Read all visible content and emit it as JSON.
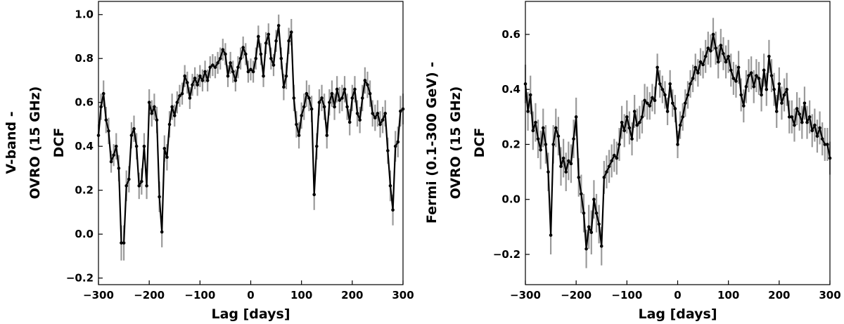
{
  "chart_data": [
    {
      "type": "line",
      "xlabel": "Lag [days]",
      "ylabel_lines": [
        "V-band -",
        "OVRO (15 GHz)",
        "DCF"
      ],
      "xlim": [
        -300,
        300
      ],
      "ylim": [
        -0.23,
        1.06
      ],
      "xticks": [
        -300,
        -200,
        -100,
        0,
        100,
        200,
        300
      ],
      "yticks": [
        -0.2,
        0.0,
        0.2,
        0.4,
        0.6,
        0.8,
        1.0
      ],
      "ytick_labels": [
        "−0.2",
        "0.0",
        "0.2",
        "0.4",
        "0.6",
        "0.8",
        "1.0"
      ],
      "xtick_labels": [
        "−300",
        "−200",
        "−100",
        "0",
        "100",
        "200",
        "300"
      ],
      "line_color": "#000000",
      "error_color": "#9a9a9a",
      "grid": false,
      "series": [
        {
          "x": [
            -300,
            -295,
            -290,
            -285,
            -280,
            -275,
            -270,
            -265,
            -260,
            -255,
            -250,
            -245,
            -240,
            -235,
            -230,
            -225,
            -220,
            -215,
            -210,
            -205,
            -200,
            -195,
            -190,
            -185,
            -180,
            -175,
            -170,
            -165,
            -160,
            -155,
            -150,
            -145,
            -140,
            -135,
            -130,
            -125,
            -120,
            -115,
            -110,
            -105,
            -100,
            -95,
            -90,
            -85,
            -80,
            -75,
            -70,
            -65,
            -60,
            -55,
            -50,
            -45,
            -40,
            -35,
            -30,
            -25,
            -20,
            -15,
            -10,
            -5,
            0,
            5,
            10,
            15,
            20,
            25,
            30,
            35,
            40,
            45,
            50,
            55,
            60,
            65,
            70,
            75,
            80,
            85,
            90,
            95,
            100,
            105,
            110,
            115,
            120,
            125,
            130,
            135,
            140,
            145,
            150,
            155,
            160,
            165,
            170,
            175,
            180,
            185,
            190,
            195,
            200,
            205,
            210,
            215,
            220,
            225,
            230,
            235,
            240,
            245,
            250,
            255,
            260,
            265,
            270,
            275,
            280,
            285,
            290,
            295,
            300
          ],
          "y": [
            0.45,
            0.58,
            0.64,
            0.52,
            0.47,
            0.33,
            0.36,
            0.4,
            0.3,
            -0.04,
            -0.04,
            0.22,
            0.25,
            0.45,
            0.48,
            0.4,
            0.22,
            0.24,
            0.4,
            0.22,
            0.6,
            0.55,
            0.58,
            0.52,
            0.17,
            0.01,
            0.39,
            0.35,
            0.5,
            0.58,
            0.54,
            0.6,
            0.63,
            0.64,
            0.72,
            0.69,
            0.62,
            0.68,
            0.71,
            0.68,
            0.72,
            0.7,
            0.74,
            0.7,
            0.76,
            0.77,
            0.76,
            0.78,
            0.8,
            0.84,
            0.82,
            0.72,
            0.78,
            0.74,
            0.7,
            0.76,
            0.8,
            0.85,
            0.82,
            0.74,
            0.75,
            0.74,
            0.8,
            0.9,
            0.82,
            0.72,
            0.87,
            0.91,
            0.8,
            0.77,
            0.88,
            0.95,
            0.8,
            0.67,
            0.72,
            0.88,
            0.92,
            0.62,
            0.5,
            0.45,
            0.54,
            0.58,
            0.64,
            0.62,
            0.57,
            0.18,
            0.4,
            0.6,
            0.62,
            0.58,
            0.45,
            0.6,
            0.64,
            0.58,
            0.66,
            0.61,
            0.62,
            0.66,
            0.58,
            0.51,
            0.62,
            0.66,
            0.55,
            0.52,
            0.62,
            0.7,
            0.68,
            0.64,
            0.55,
            0.53,
            0.55,
            0.5,
            0.52,
            0.55,
            0.38,
            0.22,
            0.11,
            0.4,
            0.42,
            0.56,
            0.57
          ],
          "err": [
            0.05,
            0.06,
            0.06,
            0.06,
            0.06,
            0.05,
            0.05,
            0.06,
            0.06,
            0.08,
            0.08,
            0.07,
            0.06,
            0.06,
            0.06,
            0.06,
            0.06,
            0.06,
            0.06,
            0.06,
            0.06,
            0.06,
            0.06,
            0.06,
            0.07,
            0.07,
            0.06,
            0.06,
            0.06,
            0.06,
            0.05,
            0.05,
            0.05,
            0.05,
            0.05,
            0.05,
            0.05,
            0.05,
            0.05,
            0.05,
            0.05,
            0.05,
            0.05,
            0.05,
            0.05,
            0.05,
            0.05,
            0.05,
            0.05,
            0.05,
            0.05,
            0.05,
            0.05,
            0.05,
            0.05,
            0.05,
            0.05,
            0.05,
            0.05,
            0.05,
            0.05,
            0.05,
            0.05,
            0.05,
            0.05,
            0.05,
            0.05,
            0.05,
            0.05,
            0.05,
            0.05,
            0.05,
            0.05,
            0.06,
            0.06,
            0.06,
            0.06,
            0.06,
            0.06,
            0.06,
            0.06,
            0.06,
            0.06,
            0.06,
            0.06,
            0.07,
            0.06,
            0.06,
            0.06,
            0.06,
            0.06,
            0.06,
            0.06,
            0.06,
            0.06,
            0.06,
            0.06,
            0.06,
            0.06,
            0.06,
            0.06,
            0.06,
            0.06,
            0.06,
            0.06,
            0.06,
            0.06,
            0.06,
            0.06,
            0.06,
            0.06,
            0.06,
            0.06,
            0.06,
            0.06,
            0.07,
            0.07,
            0.07,
            0.07,
            0.07,
            0.07
          ]
        }
      ]
    },
    {
      "type": "line",
      "xlabel": "Lag [days]",
      "ylabel_lines": [
        "Fermi (0.1-300 GeV) -",
        "OVRO (15 GHz)",
        "DCF"
      ],
      "xlim": [
        -300,
        300
      ],
      "ylim": [
        -0.31,
        0.72
      ],
      "xticks": [
        -300,
        -200,
        -100,
        0,
        100,
        200,
        300
      ],
      "yticks": [
        -0.2,
        0.0,
        0.2,
        0.4,
        0.6
      ],
      "ytick_labels": [
        "−0.2",
        "0.0",
        "0.2",
        "0.4",
        "0.6"
      ],
      "xtick_labels": [
        "−300",
        "−200",
        "−100",
        "0",
        "100",
        "200",
        "300"
      ],
      "line_color": "#000000",
      "error_color": "#9a9a9a",
      "grid": false,
      "series": [
        {
          "x": [
            -300,
            -295,
            -290,
            -285,
            -280,
            -275,
            -270,
            -265,
            -260,
            -255,
            -250,
            -245,
            -240,
            -235,
            -230,
            -225,
            -220,
            -215,
            -210,
            -205,
            -200,
            -195,
            -190,
            -185,
            -180,
            -175,
            -170,
            -165,
            -160,
            -155,
            -150,
            -145,
            -140,
            -135,
            -130,
            -125,
            -120,
            -115,
            -110,
            -105,
            -100,
            -95,
            -90,
            -85,
            -80,
            -75,
            -70,
            -65,
            -60,
            -55,
            -50,
            -45,
            -40,
            -35,
            -30,
            -25,
            -20,
            -15,
            -10,
            -5,
            0,
            5,
            10,
            15,
            20,
            25,
            30,
            35,
            40,
            45,
            50,
            55,
            60,
            65,
            70,
            75,
            80,
            85,
            90,
            95,
            100,
            105,
            110,
            115,
            120,
            125,
            130,
            135,
            140,
            145,
            150,
            155,
            160,
            165,
            170,
            175,
            180,
            185,
            190,
            195,
            200,
            205,
            210,
            215,
            220,
            225,
            230,
            235,
            240,
            245,
            250,
            255,
            260,
            265,
            270,
            275,
            280,
            285,
            290,
            295,
            300
          ],
          "y": [
            0.42,
            0.32,
            0.38,
            0.25,
            0.28,
            0.22,
            0.18,
            0.26,
            0.2,
            0.1,
            -0.13,
            0.2,
            0.26,
            0.23,
            0.12,
            0.15,
            0.1,
            0.14,
            0.13,
            0.22,
            0.3,
            0.08,
            0.02,
            -0.05,
            -0.18,
            -0.1,
            -0.12,
            0.0,
            -0.05,
            -0.09,
            -0.17,
            0.08,
            0.1,
            0.12,
            0.14,
            0.16,
            0.15,
            0.2,
            0.28,
            0.25,
            0.3,
            0.26,
            0.22,
            0.32,
            0.27,
            0.28,
            0.3,
            0.36,
            0.35,
            0.34,
            0.37,
            0.36,
            0.48,
            0.42,
            0.4,
            0.38,
            0.32,
            0.42,
            0.35,
            0.33,
            0.2,
            0.27,
            0.3,
            0.35,
            0.38,
            0.42,
            0.44,
            0.48,
            0.46,
            0.5,
            0.49,
            0.52,
            0.55,
            0.54,
            0.6,
            0.55,
            0.5,
            0.56,
            0.53,
            0.5,
            0.52,
            0.47,
            0.44,
            0.43,
            0.48,
            0.38,
            0.34,
            0.41,
            0.45,
            0.46,
            0.41,
            0.45,
            0.44,
            0.38,
            0.47,
            0.4,
            0.52,
            0.45,
            0.4,
            0.32,
            0.42,
            0.35,
            0.38,
            0.4,
            0.3,
            0.3,
            0.27,
            0.33,
            0.31,
            0.28,
            0.35,
            0.28,
            0.3,
            0.25,
            0.27,
            0.23,
            0.26,
            0.22,
            0.2,
            0.2,
            0.15
          ],
          "err": [
            0.07,
            0.07,
            0.07,
            0.07,
            0.07,
            0.07,
            0.07,
            0.07,
            0.07,
            0.07,
            0.07,
            0.07,
            0.07,
            0.07,
            0.07,
            0.07,
            0.07,
            0.07,
            0.07,
            0.07,
            0.07,
            0.07,
            0.07,
            0.07,
            0.07,
            0.08,
            0.08,
            0.07,
            0.07,
            0.07,
            0.07,
            0.06,
            0.06,
            0.06,
            0.06,
            0.06,
            0.06,
            0.06,
            0.06,
            0.06,
            0.06,
            0.06,
            0.06,
            0.06,
            0.06,
            0.06,
            0.06,
            0.06,
            0.06,
            0.05,
            0.05,
            0.05,
            0.05,
            0.05,
            0.05,
            0.05,
            0.05,
            0.05,
            0.05,
            0.05,
            0.05,
            0.05,
            0.05,
            0.05,
            0.05,
            0.05,
            0.05,
            0.05,
            0.05,
            0.05,
            0.05,
            0.06,
            0.06,
            0.06,
            0.06,
            0.06,
            0.06,
            0.06,
            0.06,
            0.06,
            0.06,
            0.06,
            0.06,
            0.06,
            0.06,
            0.06,
            0.06,
            0.06,
            0.06,
            0.06,
            0.06,
            0.06,
            0.06,
            0.06,
            0.06,
            0.06,
            0.06,
            0.06,
            0.06,
            0.06,
            0.06,
            0.06,
            0.06,
            0.06,
            0.06,
            0.06,
            0.06,
            0.06,
            0.06,
            0.06,
            0.06,
            0.06,
            0.06,
            0.06,
            0.06,
            0.06,
            0.06,
            0.06,
            0.06,
            0.06,
            0.06
          ]
        }
      ]
    }
  ]
}
